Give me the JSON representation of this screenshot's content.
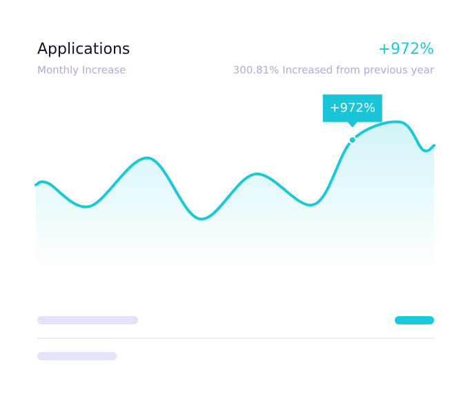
{
  "chart_data": {
    "type": "line",
    "title": "Applications",
    "subtitle": "Monthly Increase",
    "stat": "+972%",
    "stat_note": "300.81% Increased from previous year",
    "x": [
      0,
      3,
      13.5,
      28.2,
      41.2,
      55.1,
      69.8,
      79.5,
      91.5,
      97.2,
      100
    ],
    "series": [
      {
        "color": "#19c9d9",
        "values": [
          47,
          48,
          35,
          62,
          28,
          53,
          36,
          72,
          82,
          66.5,
          69
        ]
      }
    ],
    "xlim": [
      0,
      100
    ],
    "ylim": [
      0,
      100
    ],
    "annotations": [
      {
        "text": "+972%",
        "x": 79.5
      }
    ]
  }
}
